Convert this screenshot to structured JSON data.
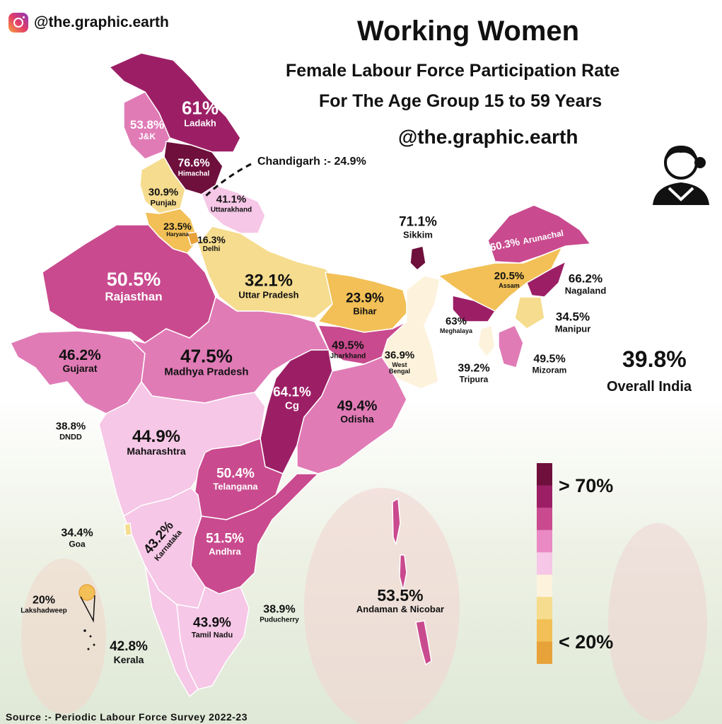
{
  "header": {
    "handle": "@the.graphic.earth",
    "title": "Working Women",
    "subtitle_line1": "Female Labour Force Participation Rate",
    "subtitle_line2": "For The Age Group 15 to 59 Years",
    "handle2": "@the.graphic.earth"
  },
  "overall": {
    "value": "39.8%",
    "label": "Overall India"
  },
  "chandigarh": "Chandigarh :- 24.9%",
  "legend": {
    "high": "> 70%",
    "low": "< 20%",
    "colors": [
      "#6e0f3c",
      "#9c1f66",
      "#c94a8e",
      "#e98ac4",
      "#f6c7e6",
      "#fdf2dc",
      "#f5dc8e",
      "#f2c056",
      "#e8a23a"
    ]
  },
  "source": "Source :- Periodic Labour Force Survey 2022-23",
  "regions": [
    {
      "id": "ladakh",
      "value": "61%",
      "name": "Ladakh"
    },
    {
      "id": "jk",
      "value": "53.8%",
      "name": "J&K"
    },
    {
      "id": "himachal",
      "value": "76.6%",
      "name": "Himachal"
    },
    {
      "id": "punjab",
      "value": "30.9%",
      "name": "Punjab"
    },
    {
      "id": "uttarakhand",
      "value": "41.1%",
      "name": "Uttarakhand"
    },
    {
      "id": "haryana",
      "value": "23.5%",
      "name": "Haryana"
    },
    {
      "id": "delhi",
      "value": "16.3%",
      "name": "Delhi"
    },
    {
      "id": "rajasthan",
      "value": "50.5%",
      "name": "Rajasthan"
    },
    {
      "id": "up",
      "value": "32.1%",
      "name": "Uttar Pradesh"
    },
    {
      "id": "bihar",
      "value": "23.9%",
      "name": "Bihar"
    },
    {
      "id": "sikkim",
      "value": "71.1%",
      "name": "Sikkim"
    },
    {
      "id": "arunachal",
      "value": "60.3%",
      "name": "Arunachal"
    },
    {
      "id": "assam",
      "value": "20.5%",
      "name": "Assam"
    },
    {
      "id": "nagaland",
      "value": "66.2%",
      "name": "Nagaland"
    },
    {
      "id": "meghalaya",
      "value": "63%",
      "name": "Meghalaya"
    },
    {
      "id": "manipur",
      "value": "34.5%",
      "name": "Manipur"
    },
    {
      "id": "jharkhand",
      "value": "49.5%",
      "name": "Jharkhand"
    },
    {
      "id": "westbengal",
      "value": "36.9%",
      "name": "West Bengal"
    },
    {
      "id": "tripura",
      "value": "39.2%",
      "name": "Tripura"
    },
    {
      "id": "mizoram",
      "value": "49.5%",
      "name": "Mizoram"
    },
    {
      "id": "gujarat",
      "value": "46.2%",
      "name": "Gujarat"
    },
    {
      "id": "mp",
      "value": "47.5%",
      "name": "Madhya Pradesh"
    },
    {
      "id": "cg",
      "value": "64.1%",
      "name": "Cg"
    },
    {
      "id": "odisha",
      "value": "49.4%",
      "name": "Odisha"
    },
    {
      "id": "dndd",
      "value": "38.8%",
      "name": "DNDD"
    },
    {
      "id": "maharashtra",
      "value": "44.9%",
      "name": "Maharashtra"
    },
    {
      "id": "telangana",
      "value": "50.4%",
      "name": "Telangana"
    },
    {
      "id": "karnataka",
      "value": "43.2%",
      "name": "Karnataka"
    },
    {
      "id": "andhra",
      "value": "51.5%",
      "name": "Andhra"
    },
    {
      "id": "goa",
      "value": "34.4%",
      "name": "Goa"
    },
    {
      "id": "lakshadweep",
      "value": "20%",
      "name": "Lakshadweep"
    },
    {
      "id": "tamilnadu",
      "value": "43.9%",
      "name": "Tamil Nadu"
    },
    {
      "id": "puducherry",
      "value": "38.9%",
      "name": "Puducherry"
    },
    {
      "id": "kerala",
      "value": "42.8%",
      "name": "Kerala"
    },
    {
      "id": "andaman",
      "value": "53.5%",
      "name": "Andaman & Nicobar"
    }
  ]
}
